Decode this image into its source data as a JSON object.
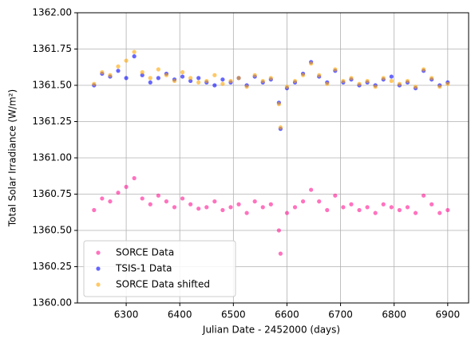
{
  "chart_data": {
    "type": "scatter",
    "x_label": "Julian Date - 2452000 (days)",
    "y_label": "Total Solar Irradiance (W/m²)",
    "xlim": [
      6209,
      6939
    ],
    "ylim": [
      1360,
      1362
    ],
    "xticks": [
      6300,
      6400,
      6500,
      6600,
      6700,
      6800,
      6900
    ],
    "yticks": [
      {
        "value": 1360,
        "label": "1360.00"
      },
      {
        "value": 1360.25,
        "label": "1360.25"
      },
      {
        "value": 1360.5,
        "label": "1360.50"
      },
      {
        "value": 1360.75,
        "label": "1360.75"
      },
      {
        "value": 1361,
        "label": "1361.00"
      },
      {
        "value": 1361.25,
        "label": "1361.25"
      },
      {
        "value": 1361.5,
        "label": "1361.50"
      },
      {
        "value": 1361.75,
        "label": "1361.75"
      },
      {
        "value": 1362,
        "label": "1362.00"
      }
    ],
    "grid": true,
    "legend": "lower left",
    "x": [
      6240,
      6255,
      6270,
      6285,
      6300,
      6315,
      6330,
      6345,
      6360,
      6375,
      6390,
      6405,
      6420,
      6435,
      6450,
      6465,
      6480,
      6495,
      6510,
      6525,
      6540,
      6555,
      6570,
      6585,
      6588,
      6600,
      6615,
      6630,
      6645,
      6660,
      6675,
      6690,
      6705,
      6720,
      6735,
      6750,
      6765,
      6780,
      6795,
      6810,
      6825,
      6840,
      6855,
      6870,
      6885,
      6900
    ],
    "series": [
      {
        "name": "SORCE Data",
        "color": "#ff1493",
        "values": [
          1360.64,
          1360.72,
          1360.7,
          1360.76,
          1360.8,
          1360.86,
          1360.72,
          1360.68,
          1360.74,
          1360.7,
          1360.66,
          1360.72,
          1360.68,
          1360.65,
          1360.66,
          1360.7,
          1360.64,
          1360.66,
          1360.68,
          1360.62,
          1360.7,
          1360.66,
          1360.68,
          1360.5,
          1360.34,
          1360.62,
          1360.66,
          1360.7,
          1360.78,
          1360.7,
          1360.64,
          1360.74,
          1360.66,
          1360.68,
          1360.64,
          1360.66,
          1360.62,
          1360.68,
          1360.66,
          1360.64,
          1360.66,
          1360.62,
          1360.74,
          1360.68,
          1360.62,
          1360.64
        ]
      },
      {
        "name": "TSIS-1 Data",
        "color": "#0000ff",
        "values": [
          1361.5,
          1361.58,
          1361.56,
          1361.6,
          1361.55,
          1361.7,
          1361.57,
          1361.52,
          1361.55,
          1361.58,
          1361.54,
          1361.56,
          1361.53,
          1361.55,
          1361.52,
          1361.5,
          1361.54,
          1361.52,
          1361.55,
          1361.5,
          1361.56,
          1361.52,
          1361.54,
          1361.38,
          1361.2,
          1361.48,
          1361.52,
          1361.58,
          1361.66,
          1361.56,
          1361.52,
          1361.6,
          1361.52,
          1361.54,
          1361.5,
          1361.52,
          1361.5,
          1361.54,
          1361.56,
          1361.5,
          1361.52,
          1361.48,
          1361.6,
          1361.54,
          1361.5,
          1361.52
        ]
      },
      {
        "name": "SORCE Data shifted",
        "color": "#ffa500",
        "values": [
          1361.51,
          1361.59,
          1361.57,
          1361.63,
          1361.67,
          1361.73,
          1361.59,
          1361.55,
          1361.61,
          1361.57,
          1361.53,
          1361.59,
          1361.55,
          1361.52,
          1361.53,
          1361.57,
          1361.51,
          1361.53,
          1361.55,
          1361.49,
          1361.57,
          1361.53,
          1361.55,
          1361.37,
          1361.21,
          1361.49,
          1361.53,
          1361.57,
          1361.65,
          1361.57,
          1361.51,
          1361.61,
          1361.53,
          1361.55,
          1361.51,
          1361.53,
          1361.49,
          1361.55,
          1361.53,
          1361.51,
          1361.53,
          1361.49,
          1361.61,
          1361.55,
          1361.49,
          1361.51
        ]
      }
    ]
  }
}
